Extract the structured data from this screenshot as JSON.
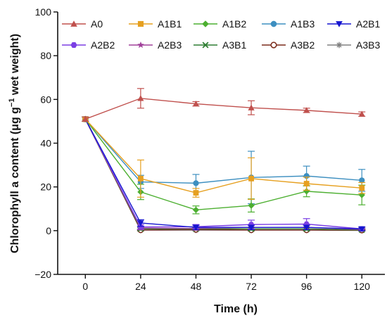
{
  "chart_data": {
    "type": "line",
    "title": "",
    "xlabel": "Time (h)",
    "ylabel_main": "Chlorophyll a content (μg g",
    "ylabel_sup": "−1",
    "ylabel_tail": " wet weight)",
    "x": [
      0,
      24,
      48,
      72,
      96,
      120
    ],
    "xlim": [
      -12,
      130
    ],
    "ylim": [
      -20,
      100
    ],
    "xticks": [
      "0",
      "24",
      "48",
      "72",
      "96",
      "120"
    ],
    "yticks": [
      "−20",
      "0",
      "20",
      "40",
      "60",
      "80",
      "100"
    ],
    "ytick_values": [
      -20,
      0,
      20,
      40,
      60,
      80,
      100
    ],
    "legend_position": "top",
    "series": [
      {
        "name": "A0",
        "color": "#c0504d",
        "marker": "triangle-up",
        "values": [
          51.0,
          60.5,
          58.0,
          56.2,
          55.0,
          53.3
        ],
        "errors": [
          1.0,
          4.5,
          1.0,
          3.2,
          1.0,
          1.0
        ]
      },
      {
        "name": "A1B1",
        "color": "#e6a020",
        "marker": "square",
        "values": [
          51.0,
          23.8,
          17.3,
          23.8,
          21.5,
          19.5
        ],
        "errors": [
          1.0,
          8.5,
          2.0,
          9.5,
          3.0,
          2.5
        ]
      },
      {
        "name": "A1B2",
        "color": "#4caf30",
        "marker": "diamond",
        "values": [
          51.0,
          17.7,
          9.5,
          11.5,
          18.0,
          16.3
        ],
        "errors": [
          1.0,
          3.5,
          1.8,
          3.0,
          2.5,
          4.5
        ]
      },
      {
        "name": "A1B3",
        "color": "#3d8fc0",
        "marker": "circle",
        "values": [
          51.0,
          22.3,
          21.7,
          24.3,
          25.0,
          23.0
        ],
        "errors": [
          1.0,
          3.0,
          4.0,
          12.0,
          4.5,
          5.0
        ]
      },
      {
        "name": "A2B1",
        "color": "#1515d0",
        "marker": "triangle-down",
        "values": [
          51.0,
          3.5,
          1.5,
          1.5,
          1.5,
          0.8
        ],
        "errors": [
          1.0,
          1.5,
          1.0,
          1.0,
          1.0,
          0.8
        ]
      },
      {
        "name": "A2B2",
        "color": "#7b3fe4",
        "marker": "hexagon",
        "values": [
          51.0,
          1.7,
          1.8,
          2.8,
          3.0,
          0.8
        ],
        "errors": [
          1.0,
          1.0,
          1.0,
          2.0,
          2.5,
          0.8
        ]
      },
      {
        "name": "A2B3",
        "color": "#a0409a",
        "marker": "star",
        "values": [
          51.0,
          1.2,
          1.0,
          1.5,
          1.5,
          0.5
        ],
        "errors": [
          1.0,
          0.8,
          0.8,
          1.0,
          1.0,
          0.5
        ]
      },
      {
        "name": "A3B1",
        "color": "#2e7d32",
        "marker": "x",
        "values": [
          51.0,
          0.8,
          0.8,
          0.8,
          0.8,
          0.3
        ],
        "errors": [
          1.0,
          0.6,
          0.6,
          0.6,
          0.6,
          0.4
        ]
      },
      {
        "name": "A3B2",
        "color": "#7a2a1a",
        "marker": "circle-open",
        "values": [
          51.0,
          0.3,
          0.5,
          0.3,
          0.3,
          0.2
        ],
        "errors": [
          1.0,
          0.4,
          0.4,
          0.4,
          0.4,
          0.3
        ]
      },
      {
        "name": "A3B3",
        "color": "#808080",
        "marker": "asterisk",
        "values": [
          51.0,
          0.2,
          0.2,
          0.2,
          0.2,
          0.1
        ],
        "errors": [
          1.0,
          0.3,
          0.3,
          0.3,
          0.3,
          0.3
        ]
      }
    ]
  }
}
